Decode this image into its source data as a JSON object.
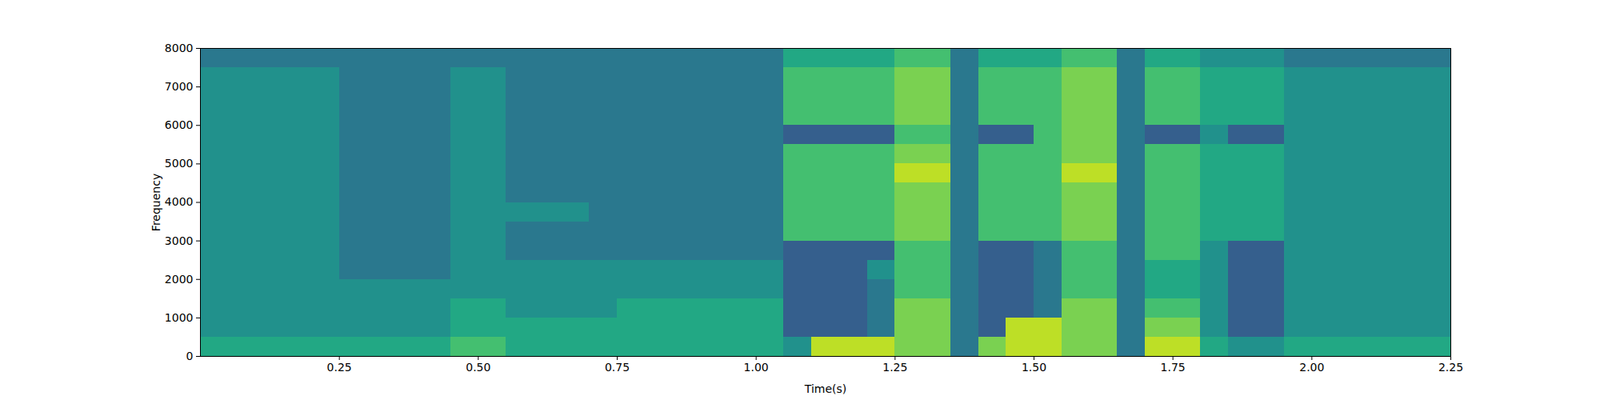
{
  "chart_data": {
    "type": "spectrogram",
    "x_label": "Time(s)",
    "y_label": "Frequency",
    "xlim": [
      0,
      2.25
    ],
    "ylim": [
      0,
      8000
    ],
    "xticks": [
      0.25,
      {
        "value": 0.5,
        "label": "0.50"
      },
      0.75,
      {
        "value": 1,
        "label": "1.00"
      },
      1.25,
      {
        "value": 1.5,
        "label": "1.50"
      },
      1.75,
      {
        "value": 2,
        "label": "2.00"
      },
      2.25
    ],
    "yticks": [
      0,
      1000,
      2000,
      3000,
      4000,
      5000,
      6000,
      7000,
      8000
    ],
    "color": "viridis",
    "zlim": [
      0,
      10
    ],
    "time_bins": [
      0,
      0.05,
      0.1,
      0.15,
      0.2,
      0.25,
      0.3,
      0.35,
      0.4,
      0.45,
      0.5,
      0.55,
      0.6,
      0.65,
      0.7,
      0.75,
      0.8,
      0.85,
      0.9,
      0.95,
      1,
      1.05,
      1.1,
      1.15,
      1.2,
      1.25,
      1.3,
      1.35,
      1.4,
      1.45,
      1.5,
      1.55,
      1.6,
      1.65,
      1.7,
      1.75,
      1.8,
      1.85,
      1.9,
      1.95,
      2,
      2.05,
      2.1,
      2.15,
      2.2,
      2.25
    ],
    "frequency_bins": [
      0,
      500,
      1000,
      1500,
      2000,
      2500,
      3000,
      3500,
      4000,
      4500,
      5000,
      5500,
      6000,
      6500,
      7000,
      7500,
      8000
    ],
    "cells": [
      [
        6,
        5,
        5,
        5,
        5,
        5,
        5,
        5,
        5,
        5,
        5,
        5,
        5,
        5,
        5,
        4
      ],
      [
        6,
        5,
        5,
        5,
        5,
        5,
        5,
        5,
        5,
        5,
        5,
        5,
        5,
        5,
        5,
        4
      ],
      [
        6,
        5,
        5,
        5,
        5,
        5,
        5,
        5,
        5,
        5,
        5,
        5,
        5,
        5,
        5,
        4
      ],
      [
        6,
        5,
        5,
        5,
        5,
        5,
        5,
        5,
        5,
        5,
        5,
        5,
        5,
        5,
        5,
        4
      ],
      [
        6,
        5,
        5,
        5,
        5,
        5,
        5,
        5,
        5,
        5,
        5,
        5,
        5,
        5,
        5,
        4
      ],
      [
        6,
        5,
        5,
        5,
        4,
        4,
        4,
        4,
        4,
        4,
        4,
        4,
        4,
        4,
        4,
        4
      ],
      [
        6,
        5,
        5,
        5,
        4,
        4,
        4,
        4,
        4,
        4,
        4,
        4,
        4,
        4,
        4,
        4
      ],
      [
        6,
        5,
        5,
        5,
        4,
        4,
        4,
        4,
        4,
        4,
        4,
        4,
        4,
        4,
        4,
        4
      ],
      [
        6,
        5,
        5,
        5,
        4,
        4,
        4,
        4,
        4,
        4,
        4,
        4,
        4,
        4,
        4,
        4
      ],
      [
        7,
        6,
        6,
        5,
        5,
        5,
        5,
        5,
        5,
        5,
        5,
        5,
        5,
        5,
        5,
        4
      ],
      [
        7,
        6,
        6,
        5,
        5,
        5,
        5,
        5,
        5,
        5,
        5,
        5,
        5,
        5,
        5,
        4
      ],
      [
        6,
        6,
        5,
        5,
        5,
        4,
        4,
        5,
        4,
        4,
        4,
        4,
        4,
        4,
        4,
        4
      ],
      [
        6,
        6,
        5,
        5,
        5,
        4,
        4,
        5,
        4,
        4,
        4,
        4,
        4,
        4,
        4,
        4
      ],
      [
        6,
        6,
        5,
        5,
        5,
        4,
        4,
        5,
        4,
        4,
        4,
        4,
        4,
        4,
        4,
        4
      ],
      [
        6,
        6,
        5,
        5,
        5,
        4,
        4,
        4,
        4,
        4,
        4,
        4,
        4,
        4,
        4,
        4
      ],
      [
        6,
        6,
        6,
        5,
        5,
        4,
        4,
        4,
        4,
        4,
        4,
        4,
        4,
        4,
        4,
        4
      ],
      [
        6,
        6,
        6,
        5,
        5,
        4,
        4,
        4,
        4,
        4,
        4,
        4,
        4,
        4,
        4,
        4
      ],
      [
        6,
        6,
        6,
        5,
        5,
        4,
        4,
        4,
        4,
        4,
        4,
        4,
        4,
        4,
        4,
        4
      ],
      [
        6,
        6,
        6,
        5,
        5,
        4,
        4,
        4,
        4,
        4,
        4,
        4,
        4,
        4,
        4,
        4
      ],
      [
        6,
        6,
        6,
        5,
        5,
        4,
        4,
        4,
        4,
        4,
        4,
        4,
        4,
        4,
        4,
        4
      ],
      [
        6,
        6,
        6,
        5,
        5,
        4,
        4,
        4,
        4,
        4,
        4,
        4,
        4,
        4,
        4,
        4
      ],
      [
        5,
        3,
        3,
        3,
        3,
        3,
        7,
        7,
        7,
        7,
        7,
        3,
        7,
        7,
        7,
        6
      ],
      [
        9,
        3,
        3,
        3,
        3,
        3,
        7,
        7,
        7,
        7,
        7,
        3,
        7,
        7,
        7,
        6
      ],
      [
        9,
        3,
        3,
        3,
        3,
        3,
        7,
        7,
        7,
        7,
        7,
        3,
        7,
        7,
        7,
        6
      ],
      [
        9,
        4,
        4,
        4,
        5,
        3,
        7,
        7,
        7,
        7,
        7,
        3,
        7,
        7,
        7,
        6
      ],
      [
        8,
        8,
        8,
        7,
        7,
        7,
        8,
        8,
        8,
        9,
        8,
        7,
        8,
        8,
        8,
        7
      ],
      [
        8,
        8,
        8,
        7,
        7,
        7,
        8,
        8,
        8,
        9,
        8,
        7,
        8,
        8,
        8,
        7
      ],
      [
        4,
        4,
        4,
        4,
        4,
        4,
        4,
        4,
        4,
        4,
        4,
        4,
        4,
        4,
        4,
        4
      ],
      [
        8,
        3,
        3,
        3,
        3,
        3,
        7,
        7,
        7,
        7,
        7,
        3,
        7,
        7,
        7,
        6
      ],
      [
        9,
        9,
        3,
        3,
        3,
        3,
        7,
        7,
        7,
        7,
        7,
        3,
        7,
        7,
        7,
        6
      ],
      [
        9,
        9,
        4,
        4,
        4,
        4,
        7,
        7,
        7,
        7,
        7,
        7,
        7,
        7,
        7,
        6
      ],
      [
        8,
        8,
        8,
        7,
        7,
        7,
        8,
        8,
        8,
        9,
        8,
        8,
        8,
        8,
        8,
        7
      ],
      [
        8,
        8,
        8,
        7,
        7,
        7,
        8,
        8,
        8,
        9,
        8,
        8,
        8,
        8,
        8,
        7
      ],
      [
        4,
        4,
        4,
        4,
        4,
        4,
        4,
        4,
        4,
        4,
        4,
        4,
        4,
        4,
        4,
        4
      ],
      [
        9,
        8,
        7,
        6,
        6,
        7,
        7,
        7,
        7,
        7,
        7,
        3,
        7,
        7,
        7,
        6
      ],
      [
        9,
        8,
        7,
        6,
        6,
        7,
        7,
        7,
        7,
        7,
        7,
        3,
        7,
        7,
        7,
        6
      ],
      [
        6,
        5,
        5,
        5,
        5,
        5,
        6,
        6,
        6,
        6,
        6,
        5,
        6,
        6,
        6,
        5
      ],
      [
        5,
        3,
        3,
        3,
        3,
        3,
        6,
        6,
        6,
        6,
        6,
        3,
        6,
        6,
        6,
        5
      ],
      [
        5,
        3,
        3,
        3,
        3,
        3,
        6,
        6,
        6,
        6,
        6,
        3,
        6,
        6,
        6,
        5
      ],
      [
        6,
        5,
        5,
        5,
        5,
        5,
        5,
        5,
        5,
        5,
        5,
        5,
        5,
        5,
        5,
        4
      ],
      [
        6,
        5,
        5,
        5,
        5,
        5,
        5,
        5,
        5,
        5,
        5,
        5,
        5,
        5,
        5,
        4
      ],
      [
        6,
        5,
        5,
        5,
        5,
        5,
        5,
        5,
        5,
        5,
        5,
        5,
        5,
        5,
        5,
        4
      ],
      [
        6,
        5,
        5,
        5,
        5,
        5,
        5,
        5,
        5,
        5,
        5,
        5,
        5,
        5,
        5,
        4
      ],
      [
        6,
        5,
        5,
        5,
        5,
        5,
        5,
        5,
        5,
        5,
        5,
        5,
        5,
        5,
        5,
        4
      ],
      [
        6,
        5,
        5,
        5,
        5,
        5,
        5,
        5,
        5,
        5,
        5,
        5,
        5,
        5,
        5,
        4
      ]
    ]
  }
}
